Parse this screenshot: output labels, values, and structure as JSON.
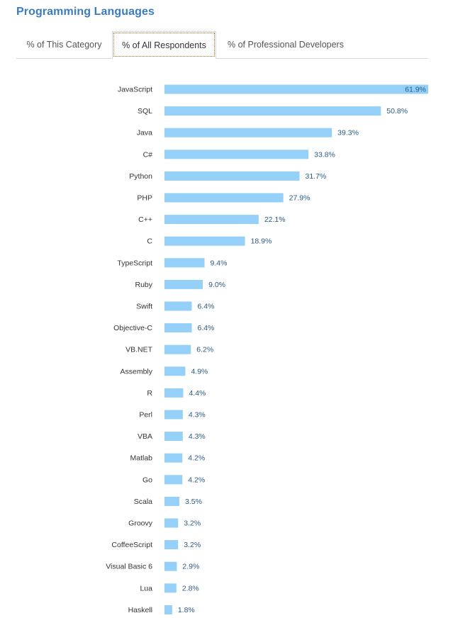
{
  "title": "Programming Languages",
  "tabs": [
    {
      "label": "% of This Category",
      "active": false
    },
    {
      "label": "% of All Respondents",
      "active": true
    },
    {
      "label": "% of Professional Developers",
      "active": false
    }
  ],
  "colors": {
    "bar": "#95d0f8",
    "title": "#3b7bbf",
    "value_label": "#2b5a85"
  },
  "chart_data": {
    "type": "bar",
    "orientation": "horizontal",
    "categories": [
      "JavaScript",
      "SQL",
      "Java",
      "C#",
      "Python",
      "PHP",
      "C++",
      "C",
      "TypeScript",
      "Ruby",
      "Swift",
      "Objective-C",
      "VB.NET",
      "Assembly",
      "R",
      "Perl",
      "VBA",
      "Matlab",
      "Go",
      "Scala",
      "Groovy",
      "CoffeeScript",
      "Visual Basic 6",
      "Lua",
      "Haskell"
    ],
    "values": [
      61.9,
      50.8,
      39.3,
      33.8,
      31.7,
      27.9,
      22.1,
      18.9,
      9.4,
      9.0,
      6.4,
      6.4,
      6.2,
      4.9,
      4.4,
      4.3,
      4.3,
      4.2,
      4.2,
      3.5,
      3.2,
      3.2,
      2.9,
      2.8,
      1.8
    ],
    "value_labels": [
      "61.9%",
      "50.8%",
      "39.3%",
      "33.8%",
      "31.7%",
      "27.9%",
      "22.1%",
      "18.9%",
      "9.4%",
      "9.0%",
      "6.4%",
      "6.4%",
      "6.2%",
      "4.9%",
      "4.4%",
      "4.3%",
      "4.3%",
      "4.2%",
      "4.2%",
      "3.5%",
      "3.2%",
      "3.2%",
      "2.9%",
      "2.8%",
      "1.8%"
    ],
    "title": "",
    "xlabel": "",
    "ylabel": "",
    "xlim": [
      0,
      61.9
    ],
    "grid": false,
    "legend": "none"
  }
}
